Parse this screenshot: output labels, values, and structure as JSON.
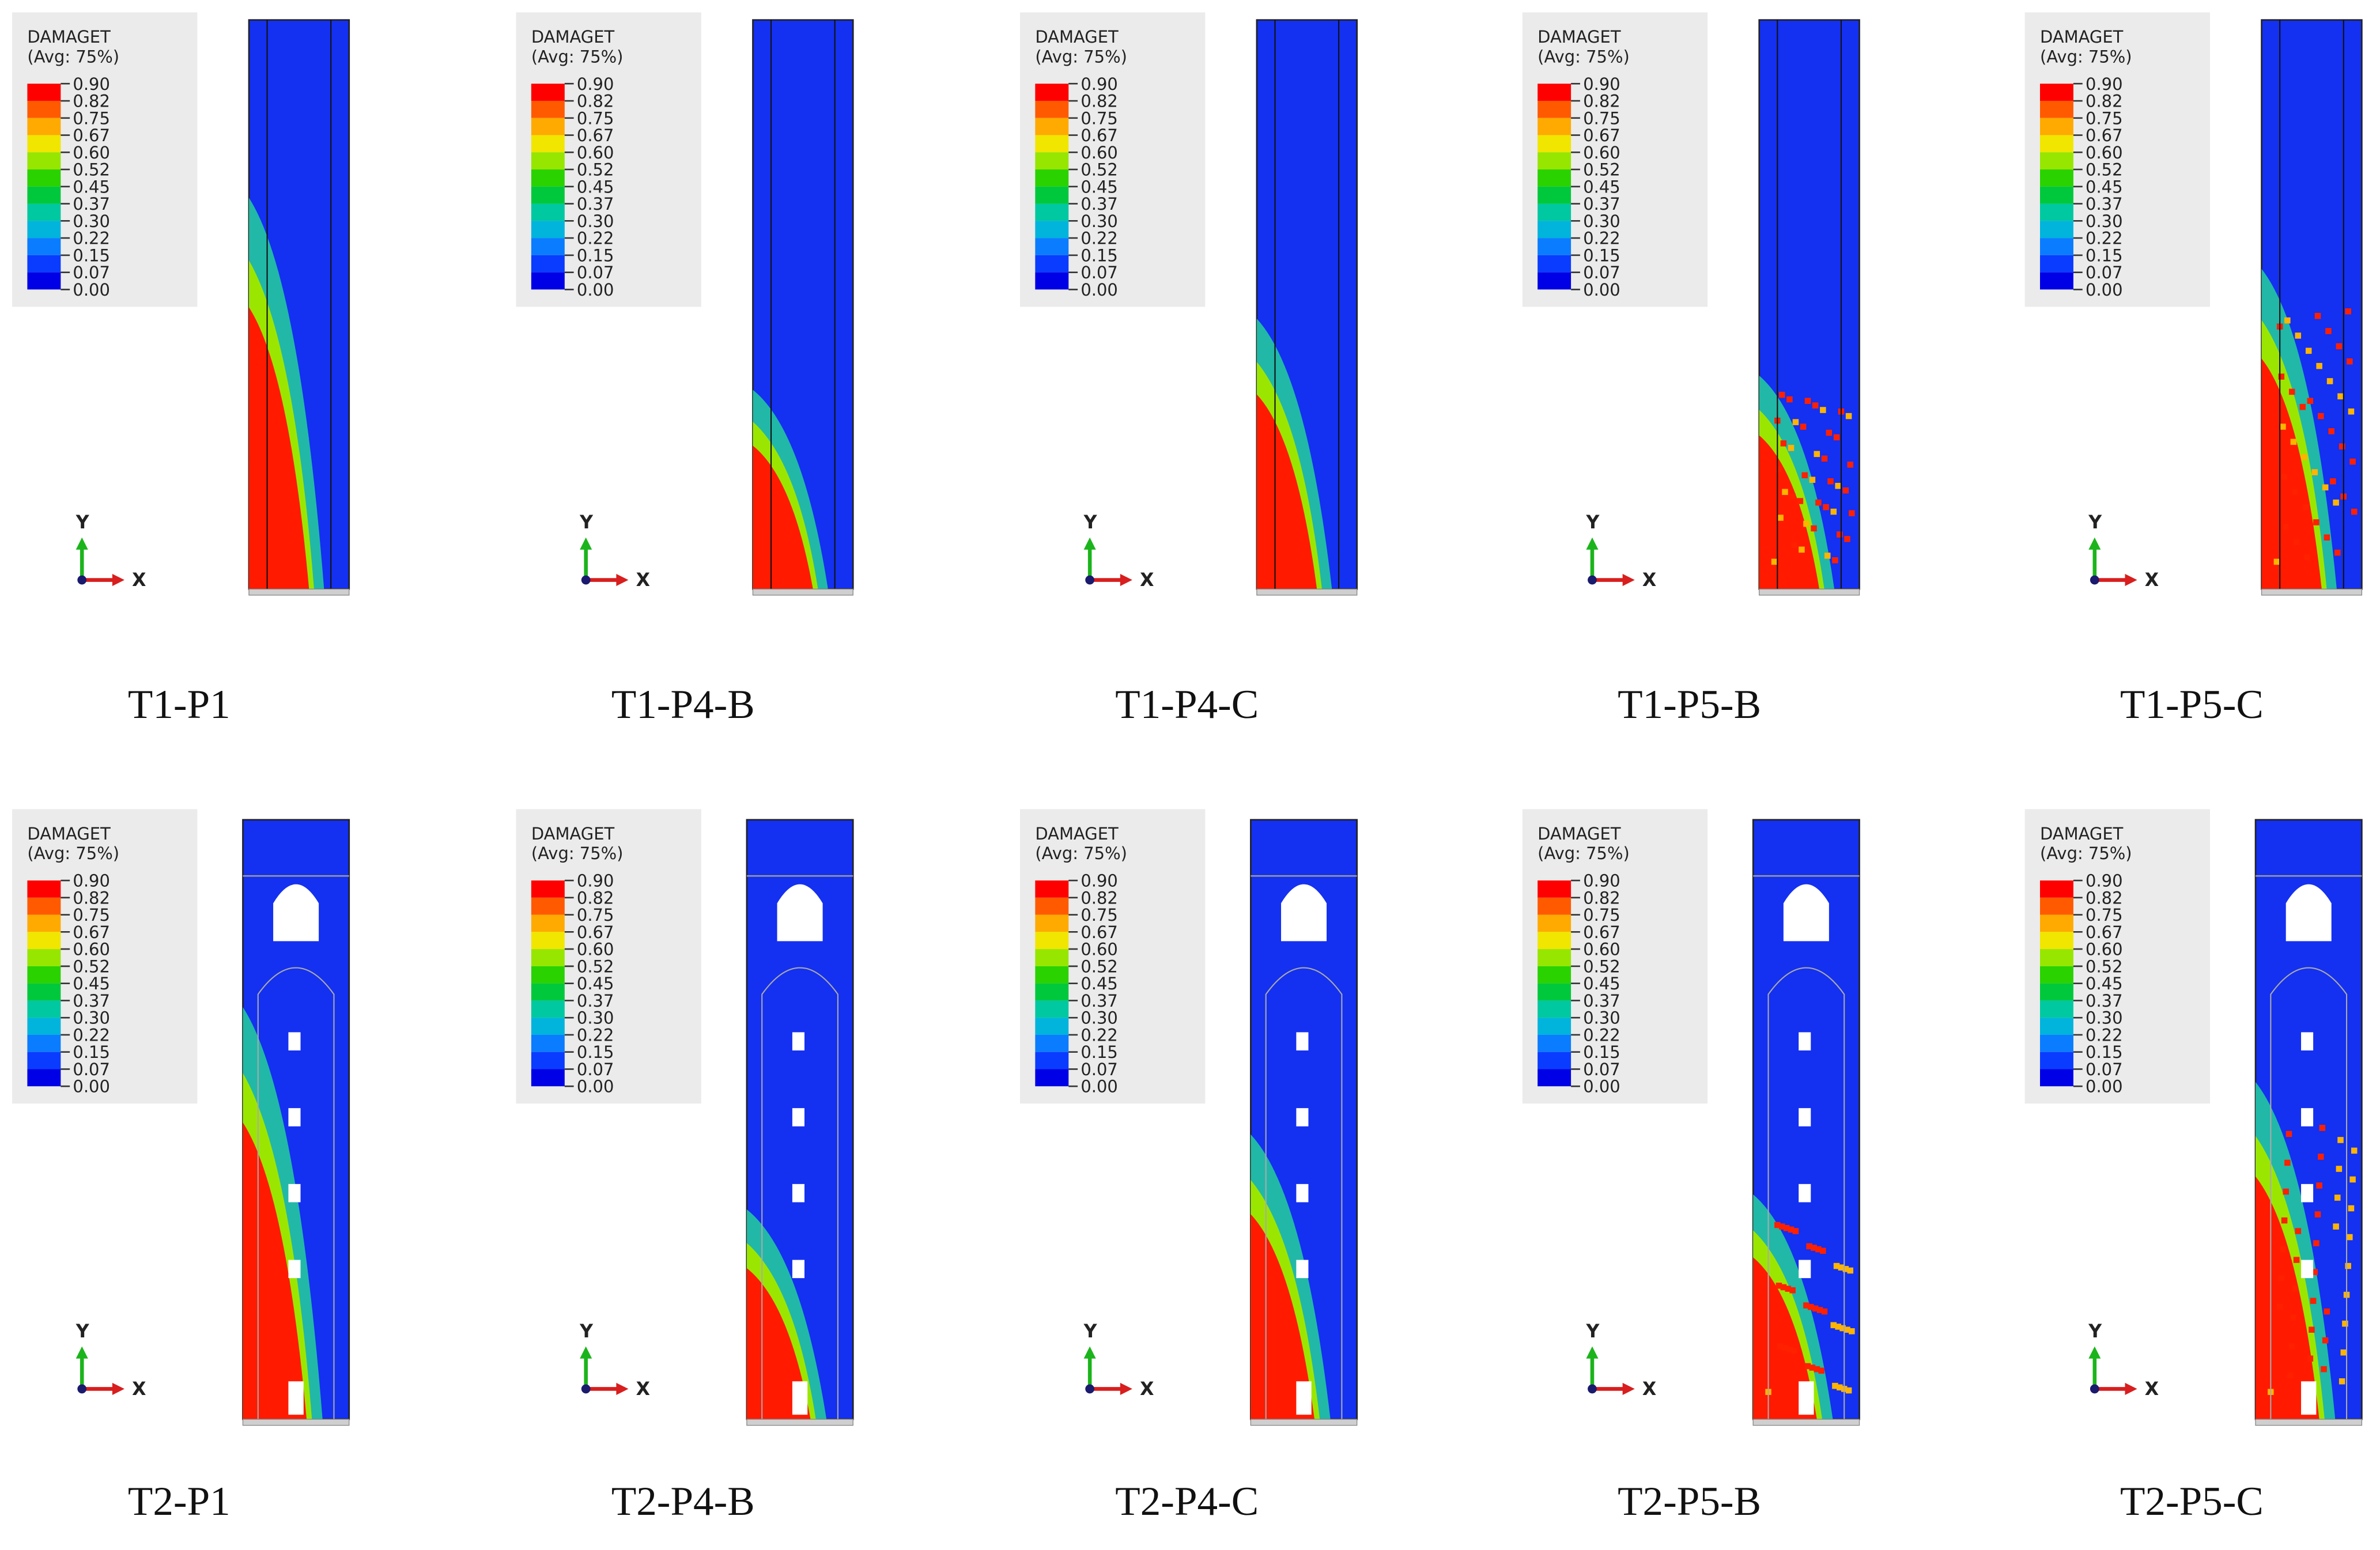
{
  "legend": {
    "title": "DAMAGET",
    "subtitle": "(Avg: 75%)",
    "levels": [
      "0.90",
      "0.82",
      "0.75",
      "0.67",
      "0.60",
      "0.52",
      "0.45",
      "0.37",
      "0.30",
      "0.22",
      "0.15",
      "0.07",
      "0.00"
    ]
  },
  "triad": {
    "y": "Y",
    "x": "X"
  },
  "panels": [
    {
      "label": "T1-P1"
    },
    {
      "label": "T1-P4-B"
    },
    {
      "label": "T1-P4-C"
    },
    {
      "label": "T1-P5-B"
    },
    {
      "label": "T1-P5-C"
    },
    {
      "label": "T2-P1"
    },
    {
      "label": "T2-P4-B"
    },
    {
      "label": "T2-P4-C"
    },
    {
      "label": "T2-P5-B"
    },
    {
      "label": "T2-P5-C"
    }
  ]
}
